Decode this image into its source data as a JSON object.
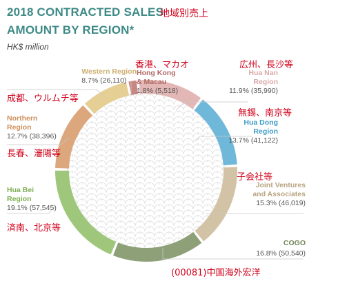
{
  "header": {
    "title_line1": "2018 CONTRACTED SALES",
    "title_line2": "AMOUNT BY REGION*",
    "title_japanese": "地域別売上",
    "unit": "HK$ million"
  },
  "colors": {
    "title": "#3d8a86",
    "annotation": "#d0021b"
  },
  "chart_data": {
    "type": "pie",
    "title": "2018 CONTRACTED SALES AMOUNT BY REGION*",
    "unit": "HK$ million",
    "donut": true,
    "legend": "callout labels around ring",
    "slices": [
      {
        "name": "Hong Kong & Macau",
        "name_line1": "Hong Kong",
        "name_line2": "& Macau",
        "value": 5518,
        "value_label": "(5,518)",
        "percent": 1.8,
        "percent_label": "1.8%",
        "color": "#c98783",
        "text_color": "#b06863",
        "note": "香港、マカオ"
      },
      {
        "name": "Hua Nan Region",
        "name_line1": "Hua Nan",
        "name_line2": "Region",
        "value": 35990,
        "value_label": "(35,990)",
        "percent": 11.9,
        "percent_label": "11.9%",
        "color": "#e3b7b5",
        "text_color": "#d9a8a6",
        "note": "広州、長沙等"
      },
      {
        "name": "Hua Dong Region",
        "name_line1": "Hua Dong",
        "name_line2": "Region",
        "value": 41122,
        "value_label": "(41,122)",
        "percent": 13.7,
        "percent_label": "13.7%",
        "color": "#6fb8d9",
        "text_color": "#3f9cc7",
        "note": "無錫、南京等"
      },
      {
        "name": "Joint Ventures and Associates",
        "name_line1": "Joint Ventures",
        "name_line2": "and Associates",
        "value": 46019,
        "value_label": "(46,019)",
        "percent": 15.3,
        "percent_label": "15.3%",
        "color": "#d3c3a6",
        "text_color": "#b9a581",
        "note": "子会社等"
      },
      {
        "name": "COGO",
        "name_line1": "COGO",
        "name_line2": "",
        "value": 50540,
        "value_label": "(50,540)",
        "percent": 16.8,
        "percent_label": "16.8%",
        "color": "#8da077",
        "text_color": "#6f8455",
        "note": "(00081)中国海外宏洋"
      },
      {
        "name": "Hua Bei Region",
        "name_line1": "Hua Bei",
        "name_line2": "Region",
        "value": 57545,
        "value_label": "(57,545)",
        "percent": 19.1,
        "percent_label": "19.1%",
        "color": "#9fc77c",
        "text_color": "#7fae54",
        "note": "済南、北京等"
      },
      {
        "name": "Northern Region",
        "name_line1": "Northern",
        "name_line2": "Region",
        "value": 38396,
        "value_label": "(38,396)",
        "percent": 12.7,
        "percent_label": "12.7%",
        "color": "#dca77c",
        "text_color": "#d0905d",
        "note": "長春、瀋陽等"
      },
      {
        "name": "Western Region",
        "name_line1": "Western Region",
        "name_line2": "",
        "value": 26110,
        "value_label": "(26,110)",
        "percent": 8.7,
        "percent_label": "8.7%",
        "color": "#e6cf95",
        "text_color": "#cdb071",
        "note": "成都、ウルムチ等"
      }
    ]
  }
}
